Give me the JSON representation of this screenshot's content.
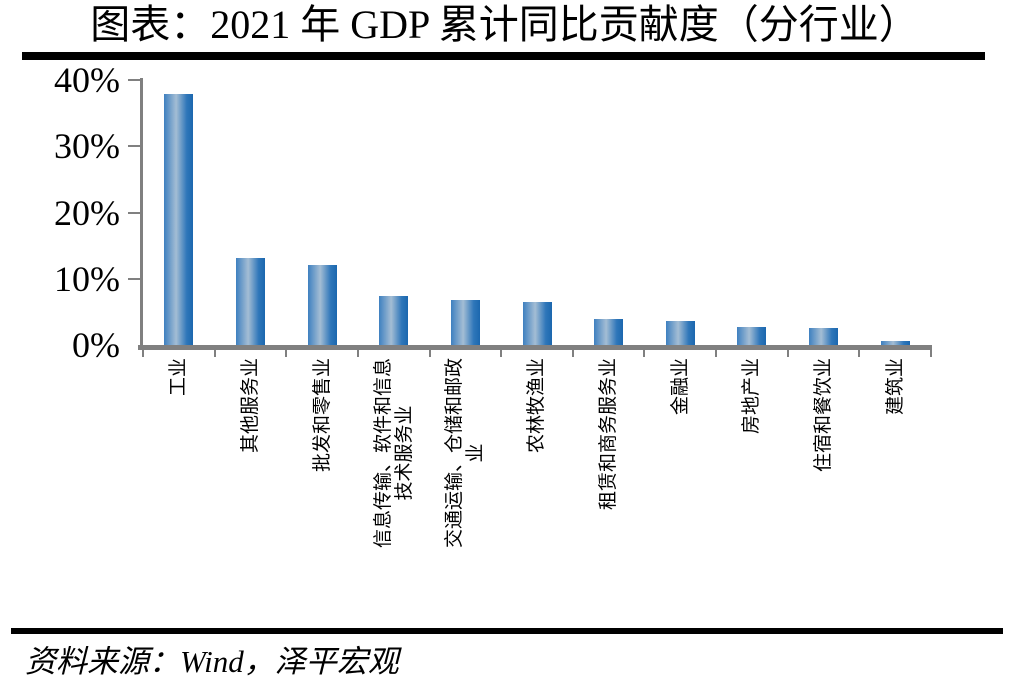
{
  "page": {
    "title": "图表：2021 年 GDP 累计同比贡献度（分行业）",
    "source": "资料来源：Wind，泽平宏观"
  },
  "chart_data": {
    "type": "bar",
    "title": "图表：2021 年 GDP 累计同比贡献度（分行业）",
    "categories": [
      "工业",
      "其他服务业",
      "批发和零售业",
      "信息传输、软件和信息\n技术服务业",
      "交通运输、仓储和邮政\n业",
      "农林牧渔业",
      "租赁和商务服务业",
      "金融业",
      "房地产业",
      "住宿和餐饮业",
      "建筑业"
    ],
    "values": [
      38.0,
      13.3,
      12.2,
      7.6,
      7.0,
      6.6,
      4.0,
      3.8,
      2.9,
      2.7,
      0.7
    ],
    "unit": "%",
    "ylabel": "",
    "xlabel": "",
    "ylim": [
      0,
      40
    ],
    "y_ticks": [
      "0%",
      "10%",
      "20%",
      "30%",
      "40%"
    ],
    "grid": false,
    "legend": "none",
    "bar_orientation": "vertical",
    "x_label_rotation": -90,
    "source": "资料来源：Wind，泽平宏观",
    "colors": {
      "bar_gradient": [
        "#3E80C0",
        "#A4BDD4",
        "#2F77BA",
        "#1B67AE"
      ],
      "axis": "#808080",
      "text": "#000000",
      "rule": "#000000"
    }
  }
}
